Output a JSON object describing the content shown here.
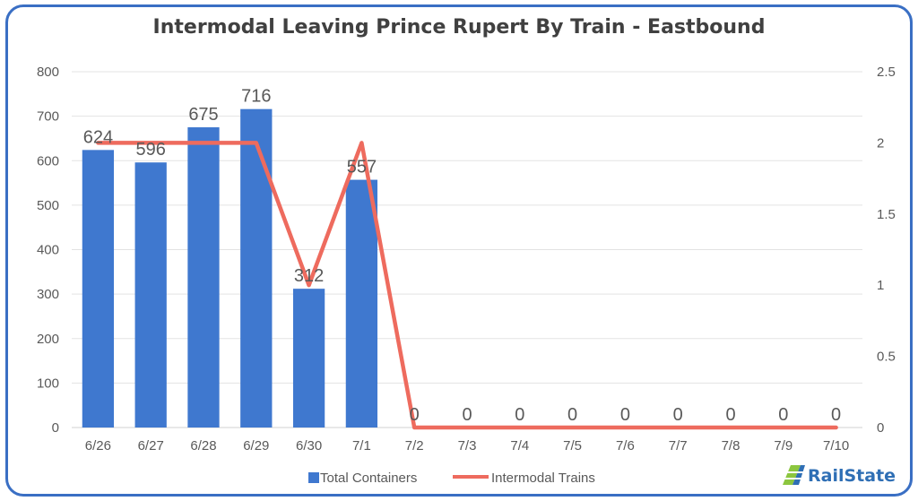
{
  "chart_data": {
    "type": "bar",
    "title": "Intermodal Leaving Prince Rupert By Train - Eastbound",
    "categories": [
      "6/26",
      "6/27",
      "6/28",
      "6/29",
      "6/30",
      "7/1",
      "7/2",
      "7/3",
      "7/4",
      "7/5",
      "7/6",
      "7/7",
      "7/8",
      "7/9",
      "7/10"
    ],
    "series": [
      {
        "name": "Total Containers",
        "type": "bar",
        "axis": "left",
        "color": "#3f78cf",
        "values": [
          624,
          596,
          675,
          716,
          312,
          557,
          0,
          0,
          0,
          0,
          0,
          0,
          0,
          0,
          0
        ],
        "data_labels": [
          "624",
          "596",
          "675",
          "716",
          "312",
          "557",
          "0",
          "0",
          "0",
          "0",
          "0",
          "0",
          "0",
          "0",
          "0"
        ]
      },
      {
        "name": "Intermodal Trains",
        "type": "line",
        "axis": "right",
        "color": "#ee6b5e",
        "values": [
          2,
          2,
          2,
          2,
          1,
          2,
          0,
          0,
          0,
          0,
          0,
          0,
          0,
          0,
          0
        ]
      }
    ],
    "y_left": {
      "min": 0,
      "max": 800,
      "ticks": [
        "0",
        "100",
        "200",
        "300",
        "400",
        "500",
        "600",
        "700",
        "800"
      ]
    },
    "y_right": {
      "min": 0,
      "max": 2.5,
      "ticks": [
        "0",
        "0.5",
        "1",
        "1.5",
        "2",
        "2.5"
      ]
    },
    "grid": true,
    "legend": "bottom"
  },
  "brand": {
    "name": "RailState",
    "icon": "railstate-logo-icon"
  }
}
